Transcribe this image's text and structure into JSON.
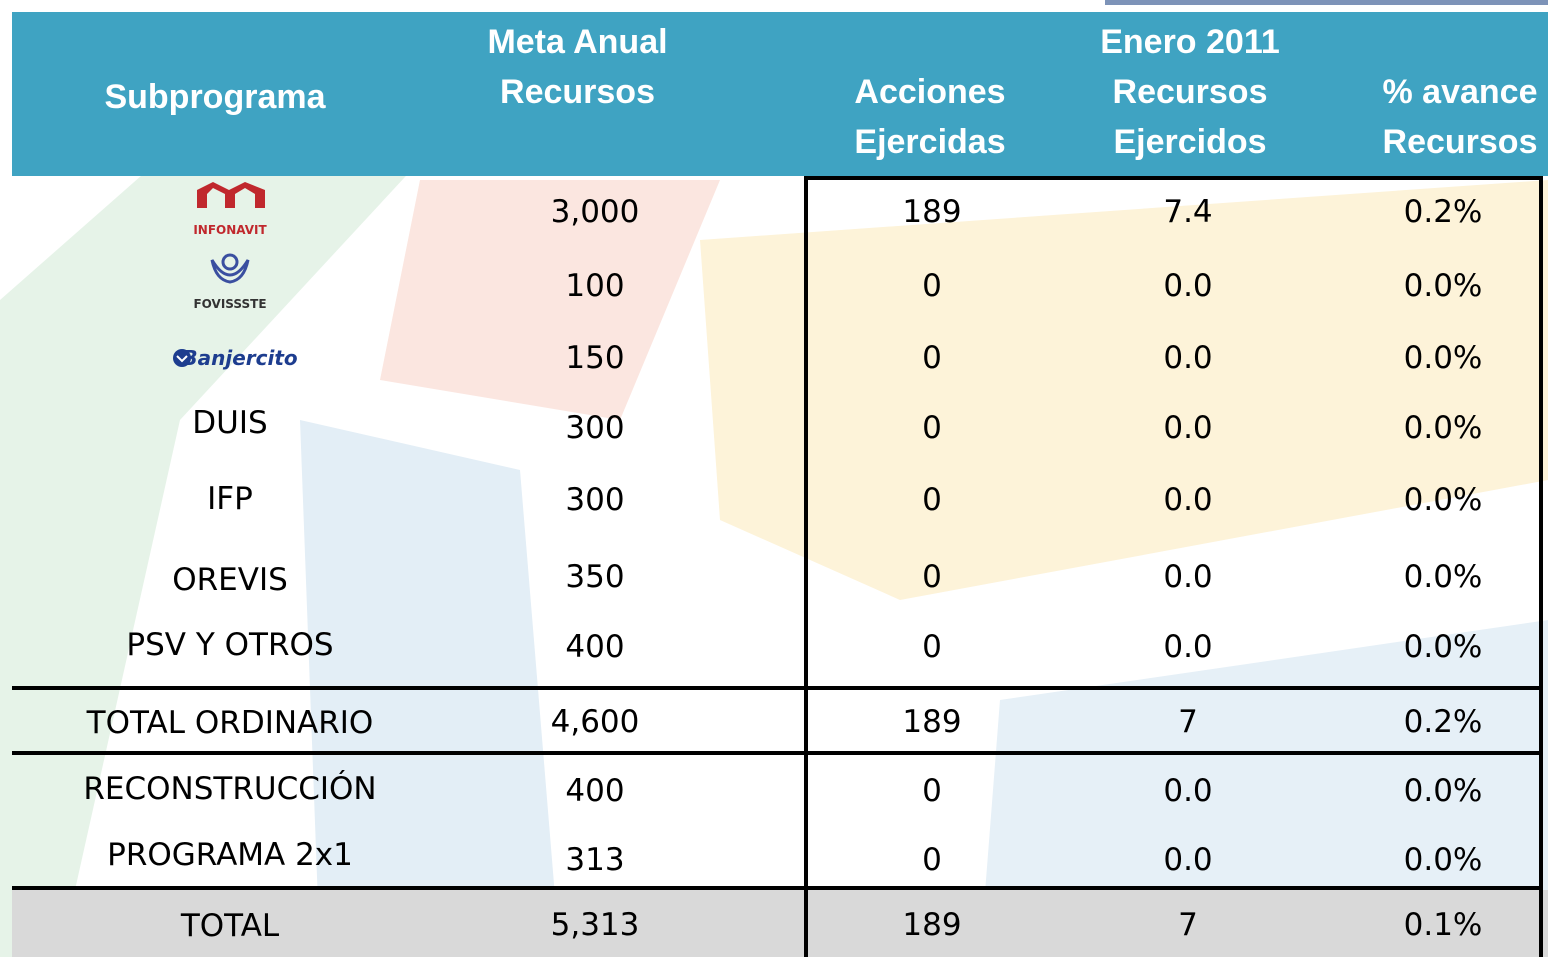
{
  "header": {
    "columns": [
      "Subprograma",
      "Meta Anual Recursos",
      "Acciones Ejercidas",
      "Recursos Ejercidos",
      "% avance Recursos"
    ],
    "group": "Enero 2011"
  },
  "rows": [
    [
      "INFONAVIT",
      "3,000",
      "189",
      "7.4",
      "0.2%"
    ],
    [
      "FOVISSSTE",
      "100",
      "0",
      "0.0",
      "0.0%"
    ],
    [
      "Banjercito",
      "150",
      "0",
      "0.0",
      "0.0%"
    ],
    [
      "DUIS",
      "300",
      "0",
      "0.0",
      "0.0%"
    ],
    [
      "IFP",
      "300",
      "0",
      "0.0",
      "0.0%"
    ],
    [
      "OREVIS",
      "350",
      "0",
      "0.0",
      "0.0%"
    ],
    [
      "PSV Y OTROS",
      "400",
      "0",
      "0.0",
      "0.0%"
    ],
    [
      "TOTAL ORDINARIO",
      "4,600",
      "189",
      "7",
      "0.2%"
    ],
    [
      "RECONSTRUCCIÓN",
      "400",
      "0",
      "0.0",
      "0.0%"
    ],
    [
      "PROGRAMA 2x1",
      "313",
      "0",
      "0.0",
      "0.0%"
    ],
    [
      "TOTAL",
      "5,313",
      "189",
      "7",
      "0.1%"
    ]
  ]
}
